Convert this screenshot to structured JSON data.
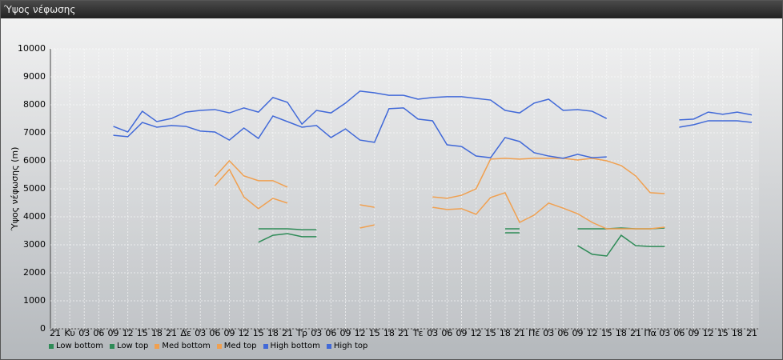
{
  "chart_data": {
    "type": "line",
    "title": "Ύψος νέφωσης",
    "y_label": "Ύψος νέφωσης (m)",
    "categories": [
      "21",
      "Κυ",
      "03",
      "06",
      "09",
      "12",
      "15",
      "18",
      "21",
      "Δε",
      "03",
      "06",
      "09",
      "12",
      "15",
      "18",
      "21",
      "Τρ",
      "03",
      "06",
      "09",
      "12",
      "15",
      "18",
      "21",
      "Τε",
      "03",
      "06",
      "09",
      "12",
      "15",
      "18",
      "21",
      "Πέ",
      "03",
      "06",
      "09",
      "12",
      "15",
      "18",
      "21",
      "Πα",
      "03",
      "06",
      "09",
      "12",
      "15",
      "18",
      "21"
    ],
    "ylim": [
      0,
      10000
    ],
    "yticks": [
      0,
      1000,
      2000,
      3000,
      4000,
      5000,
      6000,
      7000,
      8000,
      9000,
      10000
    ],
    "grid": true,
    "series": [
      {
        "name": "Low bottom",
        "color": "#2e8b57",
        "values": [
          null,
          null,
          null,
          null,
          null,
          null,
          null,
          null,
          null,
          null,
          null,
          null,
          null,
          null,
          3090,
          3340,
          3400,
          3290,
          3290,
          null,
          null,
          null,
          null,
          null,
          null,
          null,
          null,
          null,
          null,
          null,
          null,
          3430,
          3430,
          null,
          null,
          null,
          2970,
          2660,
          2600,
          3340,
          2970,
          2940,
          2940,
          null,
          null,
          null,
          null,
          null,
          null
        ]
      },
      {
        "name": "Low top",
        "color": "#2e8b57",
        "values": [
          null,
          null,
          null,
          null,
          null,
          null,
          null,
          null,
          null,
          null,
          null,
          null,
          null,
          null,
          3570,
          3570,
          3570,
          3540,
          3540,
          null,
          null,
          null,
          null,
          null,
          null,
          null,
          null,
          null,
          null,
          null,
          null,
          3570,
          3570,
          null,
          null,
          null,
          3570,
          3570,
          3570,
          3600,
          3570,
          3570,
          3600,
          null,
          null,
          null,
          null,
          null,
          null
        ]
      },
      {
        "name": "Med bottom",
        "color": "#f0a050",
        "values": [
          null,
          null,
          null,
          null,
          null,
          null,
          null,
          null,
          null,
          null,
          null,
          5110,
          5690,
          4710,
          4290,
          4660,
          4490,
          null,
          null,
          null,
          null,
          3600,
          3710,
          null,
          null,
          null,
          4340,
          4260,
          4290,
          4090,
          4690,
          4860,
          3800,
          4060,
          4490,
          4310,
          4110,
          3800,
          3570,
          3570,
          3570,
          3570,
          3630,
          null,
          null,
          null,
          null,
          null,
          null
        ]
      },
      {
        "name": "Med top",
        "color": "#f0a050",
        "values": [
          null,
          null,
          null,
          null,
          null,
          null,
          null,
          null,
          null,
          null,
          null,
          5430,
          6000,
          5460,
          5290,
          5290,
          5060,
          null,
          null,
          null,
          null,
          4430,
          4340,
          null,
          null,
          null,
          4710,
          4660,
          4770,
          5000,
          6060,
          6090,
          6060,
          6090,
          6090,
          6090,
          6030,
          6090,
          6000,
          5830,
          5460,
          4860,
          4830,
          null,
          null,
          null,
          null,
          null,
          null
        ]
      },
      {
        "name": "High bottom",
        "color": "#4169d8",
        "values": [
          null,
          null,
          null,
          null,
          6910,
          6860,
          7370,
          7200,
          7260,
          7230,
          7060,
          7030,
          6740,
          7170,
          6800,
          7600,
          7400,
          7200,
          7260,
          6830,
          7140,
          6740,
          6660,
          7860,
          7890,
          7490,
          7430,
          6570,
          6510,
          6170,
          6110,
          6830,
          6690,
          6290,
          6170,
          6090,
          6230,
          6110,
          6140,
          null,
          null,
          null,
          null,
          7200,
          7290,
          7430,
          7430,
          7430,
          7370
        ]
      },
      {
        "name": "High top",
        "color": "#4169d8",
        "values": [
          null,
          null,
          null,
          null,
          7230,
          7030,
          7770,
          7400,
          7510,
          7740,
          7800,
          7830,
          7710,
          7890,
          7740,
          8260,
          8090,
          7310,
          7800,
          7710,
          8060,
          8490,
          8430,
          8340,
          8340,
          8200,
          8260,
          8290,
          8290,
          8230,
          8170,
          7800,
          7710,
          8060,
          8200,
          7800,
          7830,
          7770,
          7510,
          null,
          null,
          null,
          null,
          7460,
          7490,
          7740,
          7660,
          7740,
          7640
        ]
      }
    ]
  }
}
